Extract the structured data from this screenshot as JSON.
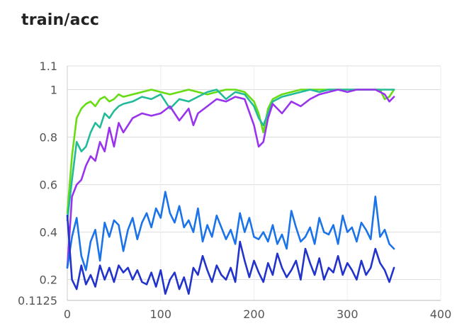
{
  "chart_data": {
    "type": "line",
    "title": "train/acc",
    "xlabel": "",
    "ylabel": "",
    "xlim": [
      0,
      400
    ],
    "ylim": [
      0.1125,
      1.1
    ],
    "x_ticks": [
      0,
      100,
      200,
      300,
      400
    ],
    "x_tick_labels": [
      "0",
      "100",
      "200",
      "300",
      "400"
    ],
    "y_ticks": [
      0.1125,
      0.2,
      0.4,
      0.6,
      0.8,
      1,
      1.1
    ],
    "y_tick_labels": [
      "0.1125",
      "0.2",
      "0.4",
      "0.6",
      "0.8",
      "1",
      "1.1"
    ],
    "grid": true,
    "legend": "none",
    "series": [
      {
        "color": "#66dd11",
        "x": [
          0,
          5,
          10,
          15,
          20,
          25,
          30,
          35,
          40,
          45,
          50,
          55,
          60,
          70,
          80,
          90,
          100,
          110,
          120,
          130,
          140,
          150,
          160,
          170,
          180,
          190,
          200,
          205,
          210,
          215,
          220,
          230,
          240,
          250,
          260,
          270,
          280,
          290,
          300,
          310,
          320,
          330,
          335,
          340,
          345,
          350
        ],
        "y": [
          0.48,
          0.72,
          0.88,
          0.92,
          0.94,
          0.95,
          0.93,
          0.96,
          0.97,
          0.95,
          0.96,
          0.98,
          0.97,
          0.98,
          0.99,
          1.0,
          0.99,
          0.98,
          0.99,
          1.0,
          0.99,
          0.98,
          0.99,
          1.0,
          1.0,
          0.99,
          0.95,
          0.9,
          0.82,
          0.92,
          0.96,
          0.98,
          0.99,
          1.0,
          1.0,
          1.0,
          1.0,
          1.0,
          1.0,
          1.0,
          1.0,
          1.0,
          1.0,
          0.96,
          0.97,
          1.0
        ]
      },
      {
        "color": "#22bb99",
        "x": [
          0,
          5,
          10,
          15,
          20,
          25,
          30,
          35,
          40,
          45,
          50,
          55,
          60,
          70,
          80,
          90,
          100,
          110,
          120,
          130,
          140,
          150,
          160,
          170,
          180,
          190,
          200,
          205,
          210,
          215,
          220,
          230,
          240,
          250,
          260,
          270,
          280,
          290,
          300,
          310,
          320,
          330,
          335,
          340,
          345,
          350
        ],
        "y": [
          0.45,
          0.62,
          0.78,
          0.74,
          0.76,
          0.82,
          0.86,
          0.84,
          0.9,
          0.88,
          0.91,
          0.93,
          0.94,
          0.95,
          0.97,
          0.96,
          0.98,
          0.92,
          0.96,
          0.95,
          0.97,
          0.99,
          1.0,
          0.96,
          0.99,
          0.98,
          0.93,
          0.88,
          0.85,
          0.9,
          0.95,
          0.97,
          0.98,
          0.99,
          1.0,
          0.99,
          1.0,
          1.0,
          1.0,
          1.0,
          1.0,
          1.0,
          1.0,
          1.0,
          1.0,
          1.0
        ]
      },
      {
        "color": "#9933ee",
        "x": [
          0,
          5,
          10,
          15,
          20,
          25,
          30,
          35,
          40,
          45,
          50,
          55,
          60,
          70,
          80,
          90,
          100,
          110,
          120,
          130,
          135,
          140,
          150,
          160,
          170,
          180,
          190,
          200,
          205,
          210,
          215,
          220,
          230,
          240,
          250,
          260,
          270,
          280,
          290,
          300,
          310,
          320,
          330,
          340,
          345,
          350
        ],
        "y": [
          0.25,
          0.55,
          0.6,
          0.62,
          0.68,
          0.72,
          0.7,
          0.78,
          0.74,
          0.84,
          0.76,
          0.86,
          0.82,
          0.88,
          0.9,
          0.89,
          0.9,
          0.93,
          0.87,
          0.92,
          0.85,
          0.9,
          0.93,
          0.96,
          0.95,
          0.97,
          0.96,
          0.85,
          0.76,
          0.78,
          0.88,
          0.94,
          0.9,
          0.95,
          0.93,
          0.96,
          0.98,
          0.99,
          1.0,
          0.99,
          1.0,
          1.0,
          1.0,
          0.98,
          0.95,
          0.97
        ]
      },
      {
        "color": "#1a73e8",
        "x": [
          0,
          5,
          10,
          15,
          20,
          25,
          30,
          35,
          40,
          45,
          50,
          55,
          60,
          65,
          70,
          75,
          80,
          85,
          90,
          95,
          100,
          105,
          110,
          115,
          120,
          125,
          130,
          135,
          140,
          145,
          150,
          155,
          160,
          165,
          170,
          175,
          180,
          185,
          190,
          195,
          200,
          205,
          210,
          215,
          220,
          225,
          230,
          235,
          240,
          245,
          250,
          255,
          260,
          265,
          270,
          275,
          280,
          285,
          290,
          295,
          300,
          305,
          310,
          315,
          320,
          325,
          330,
          335,
          340,
          345,
          350
        ],
        "y": [
          0.25,
          0.38,
          0.46,
          0.3,
          0.24,
          0.36,
          0.41,
          0.28,
          0.44,
          0.38,
          0.45,
          0.43,
          0.32,
          0.41,
          0.46,
          0.37,
          0.44,
          0.48,
          0.42,
          0.5,
          0.46,
          0.57,
          0.48,
          0.44,
          0.51,
          0.42,
          0.45,
          0.4,
          0.5,
          0.36,
          0.43,
          0.38,
          0.47,
          0.42,
          0.37,
          0.41,
          0.35,
          0.48,
          0.4,
          0.46,
          0.38,
          0.37,
          0.4,
          0.36,
          0.43,
          0.35,
          0.39,
          0.33,
          0.49,
          0.42,
          0.36,
          0.38,
          0.42,
          0.35,
          0.46,
          0.4,
          0.39,
          0.43,
          0.35,
          0.47,
          0.4,
          0.42,
          0.36,
          0.44,
          0.41,
          0.37,
          0.55,
          0.38,
          0.41,
          0.35,
          0.33
        ]
      },
      {
        "color": "#2233cc",
        "x": [
          0,
          5,
          10,
          15,
          20,
          25,
          30,
          35,
          40,
          45,
          50,
          55,
          60,
          65,
          70,
          75,
          80,
          85,
          90,
          95,
          100,
          105,
          110,
          115,
          120,
          125,
          130,
          135,
          140,
          145,
          150,
          155,
          160,
          165,
          170,
          175,
          180,
          185,
          190,
          195,
          200,
          205,
          210,
          215,
          220,
          225,
          230,
          235,
          240,
          245,
          250,
          255,
          260,
          265,
          270,
          275,
          280,
          285,
          290,
          295,
          300,
          305,
          310,
          315,
          320,
          325,
          330,
          335,
          340,
          345,
          350
        ],
        "y": [
          0.47,
          0.2,
          0.16,
          0.26,
          0.18,
          0.22,
          0.17,
          0.26,
          0.2,
          0.25,
          0.19,
          0.26,
          0.23,
          0.25,
          0.2,
          0.24,
          0.19,
          0.18,
          0.23,
          0.17,
          0.24,
          0.14,
          0.2,
          0.23,
          0.16,
          0.21,
          0.14,
          0.25,
          0.22,
          0.3,
          0.24,
          0.19,
          0.26,
          0.22,
          0.2,
          0.25,
          0.19,
          0.36,
          0.28,
          0.21,
          0.28,
          0.23,
          0.19,
          0.27,
          0.22,
          0.31,
          0.25,
          0.21,
          0.24,
          0.28,
          0.2,
          0.33,
          0.27,
          0.22,
          0.29,
          0.2,
          0.25,
          0.23,
          0.3,
          0.22,
          0.27,
          0.24,
          0.2,
          0.28,
          0.22,
          0.25,
          0.33,
          0.27,
          0.24,
          0.19,
          0.25
        ]
      }
    ]
  }
}
